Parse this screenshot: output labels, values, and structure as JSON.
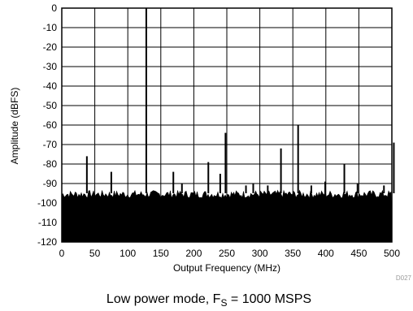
{
  "chart_data": {
    "type": "line",
    "title": "",
    "xlabel": "Output Frequency (MHz)",
    "ylabel": "Amplitude (dBFS)",
    "xlim": [
      0,
      500
    ],
    "ylim": [
      -120,
      0
    ],
    "x_ticks": [
      0,
      50,
      100,
      150,
      200,
      250,
      300,
      350,
      400,
      450,
      500
    ],
    "y_ticks": [
      0,
      -10,
      -20,
      -30,
      -40,
      -50,
      -60,
      -70,
      -80,
      -90,
      -100,
      -110,
      -120
    ],
    "grid": true,
    "legend": "none",
    "noise_floor": {
      "approx_top_dBFS": -95,
      "approx_bottom_dBFS": -120
    },
    "series": [
      {
        "color": "#000000",
        "points": [
          {
            "x": 38,
            "y": -76
          },
          {
            "x": 75,
            "y": -84
          },
          {
            "x": 128,
            "y": 0
          },
          {
            "x": 169,
            "y": -84
          },
          {
            "x": 182,
            "y": -90
          },
          {
            "x": 222,
            "y": -79
          },
          {
            "x": 240,
            "y": -85
          },
          {
            "x": 248,
            "y": -64
          },
          {
            "x": 279,
            "y": -91
          },
          {
            "x": 290,
            "y": -90
          },
          {
            "x": 312,
            "y": -91
          },
          {
            "x": 332,
            "y": -72
          },
          {
            "x": 358,
            "y": -60
          },
          {
            "x": 378,
            "y": -91
          },
          {
            "x": 399,
            "y": -89
          },
          {
            "x": 428,
            "y": -80
          },
          {
            "x": 448,
            "y": -90
          },
          {
            "x": 488,
            "y": -91
          },
          {
            "x": 503,
            "y": -69
          }
        ]
      }
    ]
  },
  "figure_id": "D027",
  "caption": {
    "prefix": "Low power mode, F",
    "subscript": "S",
    "suffix": " = 1000 MSPS"
  }
}
